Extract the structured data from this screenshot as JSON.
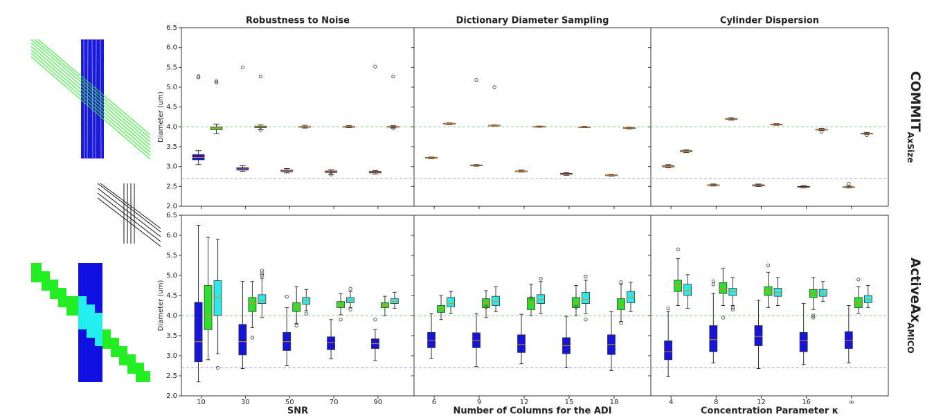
{
  "row_labels": [
    {
      "main": "COMMIT",
      "sub": "AxSize"
    },
    {
      "main": "ActiveAx",
      "sub": "AMICO"
    }
  ],
  "median_color": "#e8841c",
  "chart_data": [
    {
      "type": "box",
      "title": "Robustness to Noise",
      "y_label": "Diameter (um)",
      "ylim": [
        2.0,
        6.5
      ],
      "yticks": [
        {
          "value": 2.0,
          "label": "2.0"
        },
        {
          "value": 2.5,
          "label": "2.5"
        },
        {
          "value": 3.0,
          "label": "3.0"
        },
        {
          "value": 3.5,
          "label": "3.5"
        },
        {
          "value": 4.0,
          "label": "4.0"
        },
        {
          "value": 4.5,
          "label": "4.5"
        },
        {
          "value": 5.0,
          "label": "5.0"
        },
        {
          "value": 5.5,
          "label": "5.5"
        },
        {
          "value": 6.0,
          "label": "6.0"
        },
        {
          "value": 6.5,
          "label": "6.5"
        }
      ],
      "reference_lines": [
        {
          "value": 4.0,
          "color": "#88cc88"
        },
        {
          "value": 2.7,
          "color": "#a8a0f0"
        }
      ],
      "series": [
        {
          "color": "#1515d8",
          "boxes": [
            [
              3.05,
              3.17,
              3.23,
              3.3,
              3.4
            ],
            [
              2.88,
              2.91,
              2.94,
              2.97,
              3.02
            ],
            [
              2.84,
              2.87,
              2.89,
              2.91,
              2.95
            ],
            [
              2.8,
              2.85,
              2.87,
              2.89,
              2.92
            ],
            [
              2.81,
              2.84,
              2.86,
              2.88,
              2.9
            ]
          ],
          "outliers": [
            [
              5.28,
              5.25
            ],
            [
              5.5
            ],
            [],
            [
              2.8
            ],
            [
              5.52
            ]
          ]
        },
        {
          "color": "#2ee02e",
          "boxes": [
            [
              3.83,
              3.93,
              3.97,
              4.0,
              4.07
            ],
            [
              3.93,
              3.98,
              4.0,
              4.02,
              4.05
            ],
            [
              3.97,
              3.99,
              4.0,
              4.01,
              4.04
            ],
            [
              3.98,
              3.99,
              4.0,
              4.01,
              4.03
            ],
            [
              3.97,
              3.99,
              4.0,
              4.01,
              4.03
            ]
          ],
          "outliers": [
            [
              5.15,
              5.12
            ],
            [
              5.27,
              3.92
            ],
            [],
            [],
            [
              5.27,
              3.97
            ]
          ]
        }
      ]
    },
    {
      "type": "box",
      "title": "Dictionary Diameter Sampling",
      "ylim": [
        2.0,
        6.5
      ],
      "reference_lines": [
        {
          "value": 4.0,
          "color": "#88cc88"
        },
        {
          "value": 2.7,
          "color": "#a8a0f0"
        }
      ],
      "series": [
        {
          "color": "#1515d8",
          "boxes": [
            [
              3.2,
              3.21,
              3.22,
              3.23,
              3.24
            ],
            [
              3.01,
              3.02,
              3.03,
              3.04,
              3.05
            ],
            [
              2.86,
              2.87,
              2.88,
              2.89,
              2.91
            ],
            [
              2.78,
              2.8,
              2.81,
              2.83,
              2.85
            ],
            [
              2.76,
              2.77,
              2.78,
              2.79,
              2.8
            ]
          ],
          "outliers": [
            [],
            [
              5.18
            ],
            [],
            [],
            []
          ]
        },
        {
          "color": "#2ee02e",
          "boxes": [
            [
              4.06,
              4.07,
              4.08,
              4.09,
              4.1
            ],
            [
              4.02,
              4.03,
              4.03,
              4.04,
              4.05
            ],
            [
              3.99,
              4.0,
              4.0,
              4.01,
              4.02
            ],
            [
              3.98,
              3.99,
              3.99,
              4.0,
              4.01
            ],
            [
              3.95,
              3.96,
              3.97,
              3.98,
              3.99
            ]
          ],
          "outliers": [
            [],
            [
              5.0
            ],
            [],
            [],
            []
          ]
        }
      ]
    },
    {
      "type": "box",
      "title": "Cylinder Dispersion",
      "ylim": [
        2.0,
        6.5
      ],
      "reference_lines": [
        {
          "value": 4.0,
          "color": "#88cc88"
        },
        {
          "value": 2.7,
          "color": "#a8a0f0"
        }
      ],
      "series": [
        {
          "color": "#1515d8",
          "boxes": [
            [
              2.97,
              2.99,
              3.0,
              3.02,
              3.05
            ],
            [
              2.51,
              2.52,
              2.53,
              2.54,
              2.56
            ],
            [
              2.5,
              2.51,
              2.52,
              2.54,
              2.56
            ],
            [
              2.46,
              2.47,
              2.48,
              2.5,
              2.52
            ],
            [
              2.46,
              2.47,
              2.48,
              2.49,
              2.51
            ]
          ],
          "outliers": [
            [],
            [],
            [],
            [],
            [
              2.57
            ]
          ]
        },
        {
          "color": "#2ee02e",
          "boxes": [
            [
              3.35,
              3.37,
              3.38,
              3.4,
              3.42
            ],
            [
              4.17,
              4.19,
              4.2,
              4.21,
              4.23
            ],
            [
              4.04,
              4.05,
              4.06,
              4.07,
              4.08
            ],
            [
              3.91,
              3.92,
              3.93,
              3.94,
              3.96
            ],
            [
              3.81,
              3.82,
              3.83,
              3.84,
              3.86
            ]
          ],
          "outliers": [
            [],
            [],
            [],
            [
              3.88
            ],
            [
              3.79
            ]
          ]
        }
      ]
    },
    {
      "type": "box",
      "x_label": "SNR",
      "y_label": "Diameter (um)",
      "categories": [
        "10",
        "30",
        "50",
        "70",
        "90"
      ],
      "ylim": [
        2.0,
        6.5
      ],
      "yticks": [
        {
          "value": 2.0,
          "label": "2.0"
        },
        {
          "value": 2.5,
          "label": "2.5"
        },
        {
          "value": 3.0,
          "label": "3.0"
        },
        {
          "value": 3.5,
          "label": "3.5"
        },
        {
          "value": 4.0,
          "label": "4.0"
        },
        {
          "value": 4.5,
          "label": "4.5"
        },
        {
          "value": 5.0,
          "label": "5.0"
        },
        {
          "value": 5.5,
          "label": "5.5"
        },
        {
          "value": 6.0,
          "label": "6.0"
        },
        {
          "value": 6.5,
          "label": "6.5"
        }
      ],
      "reference_lines": [
        {
          "value": 4.0,
          "color": "#88cc88"
        },
        {
          "value": 2.7,
          "color": "#a8a0f0"
        }
      ],
      "series": [
        {
          "color": "#1515d8",
          "boxes": [
            [
              2.35,
              2.85,
              3.35,
              4.33,
              6.25
            ],
            [
              2.68,
              3.02,
              3.35,
              3.78,
              4.85
            ],
            [
              2.75,
              3.13,
              3.35,
              3.58,
              4.2
            ],
            [
              2.92,
              3.15,
              3.33,
              3.47,
              3.9
            ],
            [
              2.88,
              3.18,
              3.3,
              3.42,
              3.65
            ]
          ],
          "outliers": [
            [],
            [],
            [
              4.47
            ],
            [],
            [
              3.9
            ]
          ]
        },
        {
          "color": "#2ee02e",
          "boxes": [
            [
              2.9,
              3.65,
              4.0,
              4.75,
              5.95
            ],
            [
              3.7,
              4.1,
              4.3,
              4.45,
              4.85
            ],
            [
              3.8,
              4.1,
              4.22,
              4.32,
              4.72
            ],
            [
              4.02,
              4.2,
              4.28,
              4.35,
              4.55
            ],
            [
              4.0,
              4.2,
              4.25,
              4.32,
              4.48
            ]
          ],
          "outliers": [
            [],
            [
              3.45
            ],
            [
              3.75
            ],
            [
              3.9
            ],
            []
          ]
        },
        {
          "color": "#2ee8e8",
          "boxes": [
            [
              3.05,
              4.0,
              4.45,
              4.87,
              5.9
            ],
            [
              3.95,
              4.3,
              4.38,
              4.52,
              4.93
            ],
            [
              4.12,
              4.28,
              4.38,
              4.45,
              4.65
            ],
            [
              4.2,
              4.32,
              4.38,
              4.45,
              4.6
            ],
            [
              4.18,
              4.3,
              4.35,
              4.42,
              4.58
            ]
          ],
          "outliers": [
            [
              2.7
            ],
            [
              5.0,
              5.05,
              5.12
            ],
            [
              4.05
            ],
            [
              4.67,
              4.15
            ],
            []
          ]
        }
      ]
    },
    {
      "type": "box",
      "x_label": "Number of Columns for the ADI",
      "categories": [
        "6",
        "9",
        "12",
        "15",
        "18"
      ],
      "ylim": [
        2.0,
        6.5
      ],
      "reference_lines": [
        {
          "value": 4.0,
          "color": "#88cc88"
        },
        {
          "value": 2.7,
          "color": "#a8a0f0"
        }
      ],
      "series": [
        {
          "color": "#1515d8",
          "boxes": [
            [
              2.93,
              3.2,
              3.38,
              3.58,
              4.05
            ],
            [
              2.73,
              3.2,
              3.38,
              3.57,
              4.05
            ],
            [
              2.8,
              3.08,
              3.28,
              3.52,
              4.03
            ],
            [
              2.7,
              3.05,
              3.25,
              3.45,
              3.98
            ],
            [
              2.63,
              3.03,
              3.28,
              3.52,
              4.1
            ]
          ],
          "outliers": [
            [],
            [],
            [],
            [],
            []
          ]
        },
        {
          "color": "#2ee02e",
          "boxes": [
            [
              3.9,
              4.08,
              4.18,
              4.25,
              4.5
            ],
            [
              3.95,
              4.2,
              4.3,
              4.42,
              4.62
            ],
            [
              4.0,
              4.15,
              4.3,
              4.45,
              4.78
            ],
            [
              4.0,
              4.2,
              4.33,
              4.45,
              4.75
            ],
            [
              3.85,
              4.15,
              4.28,
              4.42,
              4.78
            ]
          ],
          "outliers": [
            [],
            [
              4.22
            ],
            [
              4.43
            ],
            [
              4.22
            ],
            [
              4.83,
              3.82
            ]
          ]
        },
        {
          "color": "#2ee8e8",
          "boxes": [
            [
              4.05,
              4.22,
              4.3,
              4.45,
              4.6
            ],
            [
              4.1,
              4.25,
              4.35,
              4.48,
              4.72
            ],
            [
              4.05,
              4.3,
              4.4,
              4.52,
              4.85
            ],
            [
              4.05,
              4.3,
              4.4,
              4.58,
              4.88
            ],
            [
              4.1,
              4.32,
              4.45,
              4.6,
              4.83
            ]
          ],
          "outliers": [
            [],
            [],
            [
              4.92
            ],
            [
              4.97,
              3.9
            ],
            []
          ]
        }
      ]
    },
    {
      "type": "box",
      "x_label": "Concentration Parameter κ",
      "categories": [
        "4",
        "8",
        "12",
        "16",
        "∞"
      ],
      "ylim": [
        2.0,
        6.5
      ],
      "reference_lines": [
        {
          "value": 4.0,
          "color": "#88cc88"
        },
        {
          "value": 2.7,
          "color": "#a8a0f0"
        }
      ],
      "series": [
        {
          "color": "#1515d8",
          "boxes": [
            [
              2.48,
              2.9,
              3.1,
              3.37,
              4.1
            ],
            [
              2.82,
              3.1,
              3.4,
              3.75,
              4.55
            ],
            [
              2.68,
              3.25,
              3.48,
              3.75,
              4.38
            ],
            [
              2.78,
              3.1,
              3.38,
              3.58,
              4.3
            ],
            [
              2.82,
              3.18,
              3.38,
              3.6,
              4.25
            ]
          ],
          "outliers": [
            [
              4.18
            ],
            [
              4.78,
              4.85
            ],
            [],
            [],
            []
          ]
        },
        {
          "color": "#2ee02e",
          "boxes": [
            [
              4.25,
              4.6,
              4.75,
              4.88,
              5.42
            ],
            [
              4.25,
              4.55,
              4.65,
              4.82,
              5.18
            ],
            [
              4.2,
              4.5,
              4.6,
              4.72,
              5.08
            ],
            [
              4.15,
              4.45,
              4.55,
              4.65,
              4.95
            ],
            [
              4.05,
              4.2,
              4.3,
              4.45,
              4.72
            ]
          ],
          "outliers": [
            [
              5.65
            ],
            [
              3.95
            ],
            [
              5.25
            ],
            [
              4.0,
              3.95
            ],
            [
              4.9
            ]
          ]
        },
        {
          "color": "#2ee8e8",
          "boxes": [
            [
              4.18,
              4.5,
              4.62,
              4.78,
              5.02
            ],
            [
              4.25,
              4.5,
              4.6,
              4.68,
              4.95
            ],
            [
              4.25,
              4.48,
              4.58,
              4.68,
              4.95
            ],
            [
              4.35,
              4.48,
              4.55,
              4.65,
              4.85
            ],
            [
              4.2,
              4.32,
              4.4,
              4.5,
              4.75
            ]
          ],
          "outliers": [
            [],
            [
              4.2,
              4.15
            ],
            [],
            [],
            []
          ]
        }
      ]
    }
  ]
}
